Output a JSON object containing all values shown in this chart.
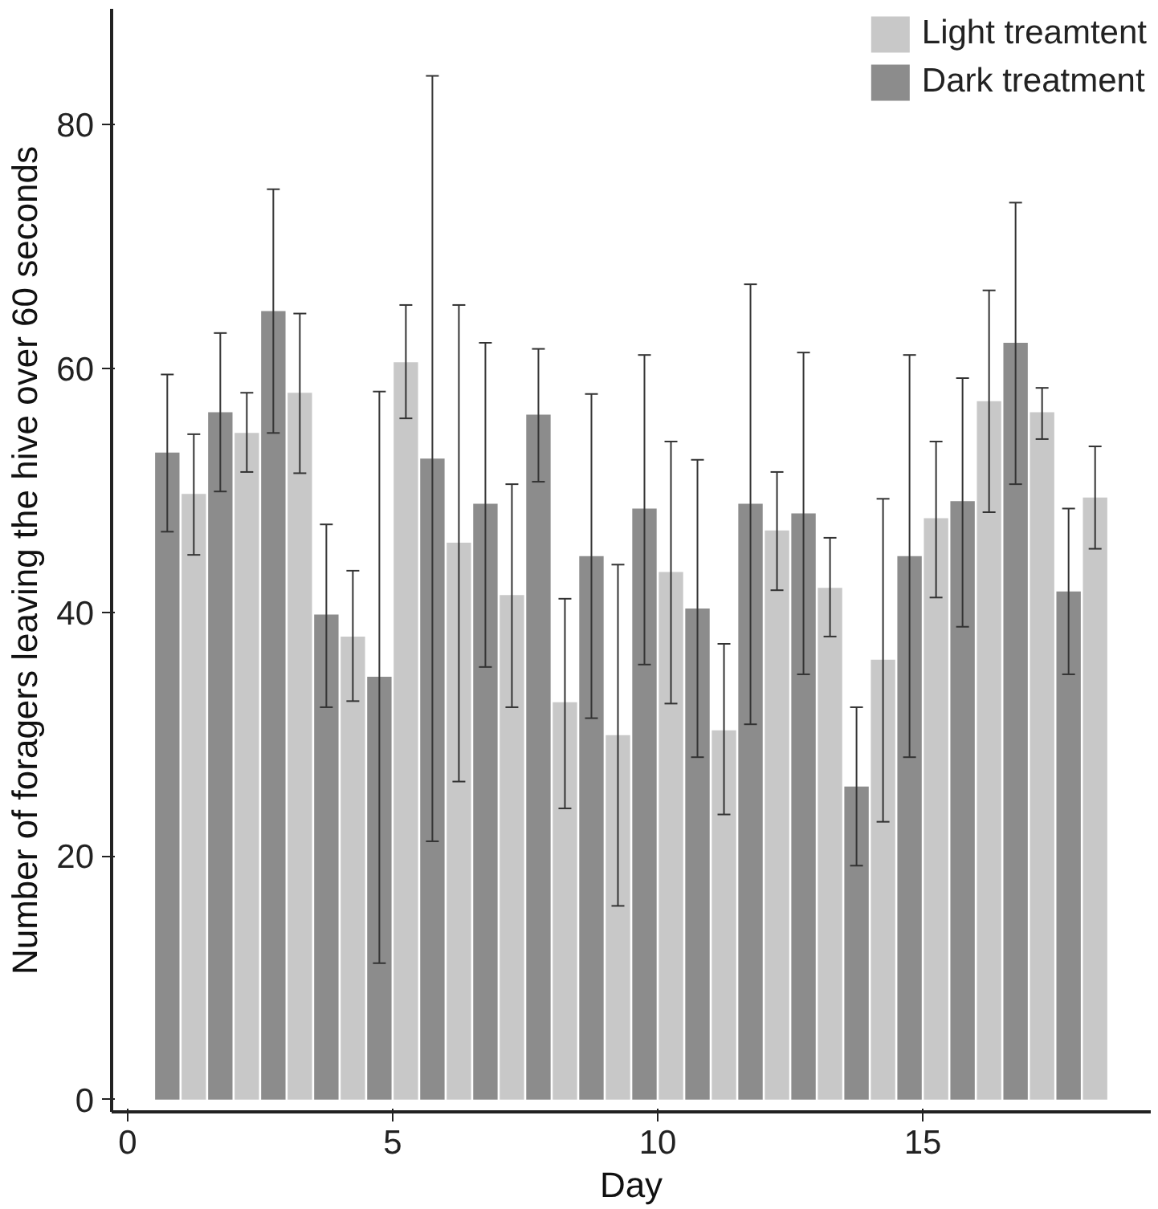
{
  "chart_data": {
    "type": "bar",
    "xlabel": "Day",
    "ylabel": "Number of foragers leaving the hive over 60 seconds",
    "x": [
      1,
      2,
      3,
      4,
      5,
      6,
      7,
      8,
      9,
      10,
      11,
      12,
      13,
      14,
      15,
      16,
      17,
      18
    ],
    "series": [
      {
        "name": "Dark treatment",
        "color": "#8c8c8c",
        "values": [
          53.1,
          56.4,
          64.7,
          39.8,
          34.7,
          52.6,
          48.9,
          56.2,
          44.6,
          48.5,
          40.3,
          48.9,
          48.1,
          25.7,
          44.6,
          49.1,
          62.1,
          41.7
        ],
        "errors": [
          [
            46.6,
            59.5
          ],
          [
            49.9,
            62.9
          ],
          [
            54.7,
            74.7
          ],
          [
            32.2,
            47.2
          ],
          [
            11.2,
            58.1
          ],
          [
            21.2,
            84.0
          ],
          [
            35.5,
            62.1
          ],
          [
            50.7,
            61.6
          ],
          [
            31.3,
            57.9
          ],
          [
            35.7,
            61.1
          ],
          [
            28.1,
            52.5
          ],
          [
            30.8,
            66.9
          ],
          [
            34.9,
            61.3
          ],
          [
            19.2,
            32.2
          ],
          [
            28.1,
            61.1
          ],
          [
            38.8,
            59.2
          ],
          [
            50.5,
            73.6
          ],
          [
            34.9,
            48.5
          ]
        ]
      },
      {
        "name": "Light treamtent",
        "color": "#c8c8c8",
        "values": [
          49.7,
          54.7,
          58.0,
          38.0,
          60.5,
          45.7,
          41.4,
          32.6,
          29.9,
          43.3,
          30.3,
          46.7,
          42.0,
          36.1,
          47.7,
          57.3,
          56.4,
          49.4
        ],
        "errors": [
          [
            44.7,
            54.6
          ],
          [
            51.5,
            58.0
          ],
          [
            51.4,
            64.5
          ],
          [
            32.7,
            43.4
          ],
          [
            55.9,
            65.2
          ],
          [
            26.1,
            65.2
          ],
          [
            32.2,
            50.5
          ],
          [
            23.9,
            41.1
          ],
          [
            15.9,
            43.9
          ],
          [
            32.5,
            54.0
          ],
          [
            23.4,
            37.4
          ],
          [
            41.8,
            51.5
          ],
          [
            38.0,
            46.1
          ],
          [
            22.8,
            49.3
          ],
          [
            41.2,
            54.0
          ],
          [
            48.2,
            66.4
          ],
          [
            54.2,
            58.4
          ],
          [
            45.2,
            53.6
          ]
        ]
      }
    ],
    "xlim": [
      -0.3,
      19.3
    ],
    "xticks": [
      0,
      5,
      10,
      15
    ],
    "ylim": [
      -1,
      89.5
    ],
    "yticks": [
      0,
      20,
      40,
      60,
      80
    ],
    "grid": false,
    "legend": "top right"
  }
}
